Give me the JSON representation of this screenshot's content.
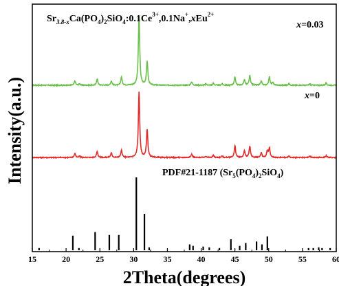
{
  "chart_data": {
    "type": "line",
    "title": {
      "parts": [
        "Sr",
        "3.8-x",
        "Ca(PO",
        "4",
        ")",
        "2",
        "SiO",
        "4",
        ":0.1Ce",
        "3+",
        ",0.1Na",
        "+",
        ",",
        "x",
        "Eu",
        "2+"
      ]
    },
    "xlabel": "2Theta(degrees)",
    "ylabel": "Intensity(a.u.)",
    "xlim": [
      15,
      60
    ],
    "x_ticks": [
      "15",
      "20",
      "25",
      "30",
      "35",
      "40",
      "45",
      "50",
      "55",
      "60"
    ],
    "y_ticks": "none",
    "series": [
      {
        "name": "x=0.03",
        "color": "#6ac04a",
        "baseline": 0.02,
        "peaks": [
          [
            21.3,
            0.06
          ],
          [
            22.0,
            0.02
          ],
          [
            24.6,
            0.09
          ],
          [
            26.7,
            0.06
          ],
          [
            28.2,
            0.12
          ],
          [
            30.8,
            1.0
          ],
          [
            32.0,
            0.35
          ],
          [
            38.6,
            0.05
          ],
          [
            40.7,
            0.02
          ],
          [
            41.8,
            0.03
          ],
          [
            43.1,
            0.02
          ],
          [
            45.0,
            0.12
          ],
          [
            46.4,
            0.08
          ],
          [
            47.2,
            0.14
          ],
          [
            48.9,
            0.06
          ],
          [
            50.1,
            0.12
          ],
          [
            50.6,
            0.04
          ],
          [
            53.0,
            0.02
          ],
          [
            56.1,
            0.02
          ],
          [
            58.5,
            0.03
          ]
        ]
      },
      {
        "name": "x=0",
        "color": "#e42a2a",
        "baseline": 0.02,
        "peaks": [
          [
            21.3,
            0.06
          ],
          [
            22.0,
            0.02
          ],
          [
            24.6,
            0.09
          ],
          [
            26.7,
            0.07
          ],
          [
            28.2,
            0.11
          ],
          [
            30.8,
            1.0
          ],
          [
            32.0,
            0.43
          ],
          [
            38.6,
            0.05
          ],
          [
            40.7,
            0.02
          ],
          [
            41.8,
            0.03
          ],
          [
            43.1,
            0.02
          ],
          [
            45.0,
            0.18
          ],
          [
            46.4,
            0.1
          ],
          [
            47.2,
            0.17
          ],
          [
            48.9,
            0.07
          ],
          [
            49.8,
            0.1
          ],
          [
            50.1,
            0.14
          ],
          [
            53.0,
            0.02
          ],
          [
            56.1,
            0.02
          ],
          [
            58.5,
            0.03
          ]
        ]
      },
      {
        "name": "PDF#21-1187",
        "type": "stick",
        "color": "#000000",
        "positions": [
          16.0,
          21.0,
          21.9,
          24.3,
          26.4,
          27.8,
          30.4,
          31.6,
          32.3,
          38.3,
          38.8,
          40.3,
          41.2,
          42.7,
          44.4,
          45.7,
          46.6,
          48.2,
          49.0,
          49.8,
          55.9,
          56.6,
          57.4,
          57.9,
          59.1
        ],
        "values": [
          0.03,
          0.2,
          0.03,
          0.25,
          0.21,
          0.21,
          1.0,
          0.5,
          0.04,
          0.08,
          0.06,
          0.05,
          0.04,
          0.03,
          0.15,
          0.06,
          0.1,
          0.12,
          0.08,
          0.19,
          0.03,
          0.03,
          0.04,
          0.03,
          0.03
        ]
      }
    ],
    "labels": {
      "x003": [
        "x",
        "=0.03"
      ],
      "x0": [
        "x",
        "=0"
      ],
      "pdf": [
        "PDF#21-1187 (Sr",
        "5",
        "(PO",
        "4",
        ")",
        "2",
        "SiO",
        "4",
        ")"
      ]
    },
    "grid": false,
    "legend": "none"
  }
}
